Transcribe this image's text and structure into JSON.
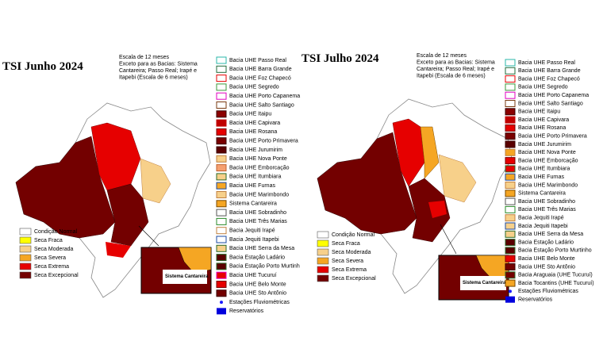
{
  "panels": [
    {
      "title": "TSI Junho 2024",
      "note": [
        "Escala de 12 meses",
        "Exceto para as Bacias: Sistema",
        "Cantareira; Passo Real; Irapé e",
        "Itapebi (Escala de 6 meses)"
      ],
      "inset_label": "Sistema Cantareira",
      "drought_legend": [
        {
          "label": "Condição Normal",
          "color": "#ffffff"
        },
        {
          "label": "Seca Fraca",
          "color": "#ffff00"
        },
        {
          "label": "Seca Moderada",
          "color": "#f7d08a"
        },
        {
          "label": "Seca Severa",
          "color": "#f5a623"
        },
        {
          "label": "Seca Extrema",
          "color": "#e60000"
        },
        {
          "label": "Seca Excepcional",
          "color": "#730000"
        }
      ],
      "basins": [
        {
          "label": "Bacia UHE Passo Real",
          "fill": "#ffffff",
          "stroke": "#2ab7a9"
        },
        {
          "label": "Bacia UHE Barra Grande",
          "fill": "#ffffff",
          "stroke": "#1f6b3a"
        },
        {
          "label": "Bacia UHE Foz Chapecó",
          "fill": "#ffffff",
          "stroke": "#e60000"
        },
        {
          "label": "Bacia UHE Segredo",
          "fill": "#ffffff",
          "stroke": "#3a9a3a"
        },
        {
          "label": "Bacia UHE Porto Capanema",
          "fill": "#ffffff",
          "stroke": "#e000c0"
        },
        {
          "label": "Bacia UHE Salto Santiago",
          "fill": "#ffffff",
          "stroke": "#7a3a10"
        },
        {
          "label": "Bacia UHE Itaipu",
          "fill": "#8b0000",
          "stroke": "#3a0000"
        },
        {
          "label": "Bacia UHE Capivara",
          "fill": "#c00000",
          "stroke": "#c00000"
        },
        {
          "label": "Bacia UHE Rosana",
          "fill": "#e60000",
          "stroke": "#7a0000"
        },
        {
          "label": "Bacia UHE Porto Primavera",
          "fill": "#7a0000",
          "stroke": "#3a0000"
        },
        {
          "label": "Bacia UHE Jurumirim",
          "fill": "#5a0000",
          "stroke": "#3a0000"
        },
        {
          "label": "Bacia UHE Nova Ponte",
          "fill": "#f7d08a",
          "stroke": "#c08040"
        },
        {
          "label": "Bacia UHE Emborcação",
          "fill": "#f5a070",
          "stroke": "#c06030"
        },
        {
          "label": "Bacia UHE Itumbiara",
          "fill": "#f7d08a",
          "stroke": "#2a6a2a"
        },
        {
          "label": "Bacia UHE Furnas",
          "fill": "#f5a623",
          "stroke": "#1a4aa0"
        },
        {
          "label": "Bacia UHE Marimbondo",
          "fill": "#f7d08a",
          "stroke": "#c08040"
        },
        {
          "label": "Sistema Cantareira",
          "fill": "#f5a623",
          "stroke": "#7a4a00"
        },
        {
          "label": "Bacia UHE Sobradinho",
          "fill": "#ffffff",
          "stroke": "#555555"
        },
        {
          "label": "Bacia UHE Três Marias",
          "fill": "#ffffff",
          "stroke": "#2a8a2a"
        },
        {
          "label": "Bacia Jequiti Irapé",
          "fill": "#ffffff",
          "stroke": "#c08040"
        },
        {
          "label": "Bacia Jequiti Itapebi",
          "fill": "#ffffff",
          "stroke": "#1a4aa0"
        },
        {
          "label": "Bacia UHE Serra da Mesa",
          "fill": "#f7d08a",
          "stroke": "#2a6a2a"
        },
        {
          "label": "Bacia Estação Ladário",
          "fill": "#5a0000",
          "stroke": "#2a6a2a"
        },
        {
          "label": "Bacia Estação Porto Murtinh",
          "fill": "#5a0000",
          "stroke": "#2a6a2a"
        },
        {
          "label": "Bacia UHE Tucuruí",
          "fill": "#e60000",
          "stroke": "#e000c0"
        },
        {
          "label": "Bacia UHE Belo Monte",
          "fill": "#e60000",
          "stroke": "#7a0000"
        },
        {
          "label": "Bacia UHE Sto Antônio",
          "fill": "#730000",
          "stroke": "#3a0000"
        },
        {
          "label": "Estações Fluviométricas",
          "fill": "#1a1aff",
          "stroke": "#1a1aff",
          "shape": "dot"
        },
        {
          "label": "Reservatórios",
          "fill": "#0000dd",
          "stroke": "#0000dd",
          "shape": "rect"
        }
      ]
    },
    {
      "title": "TSI Julho 2024",
      "note": [
        "Escala de 12 meses",
        "Exceto para as Bacias: Sistema",
        "Cantareira; Passo Real; Irapé e",
        "Itapebi (Escala de 6 meses)"
      ],
      "inset_label": "Sistema Cantareira",
      "drought_legend": [
        {
          "label": "Condição Normal",
          "color": "#ffffff"
        },
        {
          "label": "Seca Fraca",
          "color": "#ffff00"
        },
        {
          "label": "Seca Moderada",
          "color": "#f7d08a"
        },
        {
          "label": "Seca Severa",
          "color": "#f5a623"
        },
        {
          "label": "Seca Extrema",
          "color": "#e60000"
        },
        {
          "label": "Seca Excepcional",
          "color": "#730000"
        }
      ],
      "basins": [
        {
          "label": "Bacia UHE Passo Real",
          "fill": "#ffffff",
          "stroke": "#2ab7a9"
        },
        {
          "label": "Bacia UHE Barra Grande",
          "fill": "#ffffff",
          "stroke": "#1f6b3a"
        },
        {
          "label": "Bacia UHE Foz Chapecó",
          "fill": "#ffffff",
          "stroke": "#e60000"
        },
        {
          "label": "Bacia UHE Segredo",
          "fill": "#ffffff",
          "stroke": "#3a9a3a"
        },
        {
          "label": "Bacia UHE Porto Capanema",
          "fill": "#ffffff",
          "stroke": "#e000c0"
        },
        {
          "label": "Bacia UHE Salto Santiago",
          "fill": "#ffffff",
          "stroke": "#7a3a10"
        },
        {
          "label": "Bacia UHE Itaipu",
          "fill": "#8b0000",
          "stroke": "#3a0000"
        },
        {
          "label": "Bacia UHE Capivara",
          "fill": "#c00000",
          "stroke": "#c00000"
        },
        {
          "label": "Bacia UHE Rosana",
          "fill": "#e60000",
          "stroke": "#7a0000"
        },
        {
          "label": "Bacia UHE Porto Primavera",
          "fill": "#7a0000",
          "stroke": "#3a0000"
        },
        {
          "label": "Bacia UHE Jurumirim",
          "fill": "#5a0000",
          "stroke": "#3a0000"
        },
        {
          "label": "Bacia UHE Nova Ponte",
          "fill": "#f5a623",
          "stroke": "#c08040"
        },
        {
          "label": "Bacia UHE Emborcação",
          "fill": "#e60000",
          "stroke": "#7a0000"
        },
        {
          "label": "Bacia UHE Itumbiara",
          "fill": "#e60000",
          "stroke": "#2a6a2a"
        },
        {
          "label": "Bacia UHE Furnas",
          "fill": "#f5a623",
          "stroke": "#1a4aa0"
        },
        {
          "label": "Bacia UHE Marimbondo",
          "fill": "#f7d08a",
          "stroke": "#c08040"
        },
        {
          "label": "Sistema Cantareira",
          "fill": "#f5a623",
          "stroke": "#7a4a00"
        },
        {
          "label": "Bacia UHE Sobradinho",
          "fill": "#ffffff",
          "stroke": "#555555"
        },
        {
          "label": "Bacia UHE Três Marias",
          "fill": "#ffffff",
          "stroke": "#2a8a2a"
        },
        {
          "label": "Bacia Jequiti Irapé",
          "fill": "#f7d08a",
          "stroke": "#c08040"
        },
        {
          "label": "Bacia Jequiti Itapebi",
          "fill": "#f7d08a",
          "stroke": "#1a4aa0"
        },
        {
          "label": "Bacia UHE Serra da Mesa",
          "fill": "#f7d08a",
          "stroke": "#2a6a2a"
        },
        {
          "label": "Bacia Estação Ladário",
          "fill": "#5a0000",
          "stroke": "#2a6a2a"
        },
        {
          "label": "Bacia Estação Porto Murtinho",
          "fill": "#5a0000",
          "stroke": "#2a6a2a"
        },
        {
          "label": "Bacia UHE Belo Monte",
          "fill": "#e60000",
          "stroke": "#7a0000"
        },
        {
          "label": "Bacia UHE Sto Antônio",
          "fill": "#730000",
          "stroke": "#3a0000"
        },
        {
          "label": "Bacia Araguaia (UHE Tucuruí)",
          "fill": "#730000",
          "stroke": "#2a6a2a"
        },
        {
          "label": "Bacia Tocantins (UHE Tucuruí)",
          "fill": "#f5a623",
          "stroke": "#7a4a00"
        },
        {
          "label": "Estações Fluviométricas",
          "fill": "#1a1aff",
          "stroke": "#1a1aff",
          "shape": "dot"
        },
        {
          "label": "Reservatórios",
          "fill": "#0000dd",
          "stroke": "#0000dd",
          "shape": "rect"
        }
      ]
    }
  ]
}
